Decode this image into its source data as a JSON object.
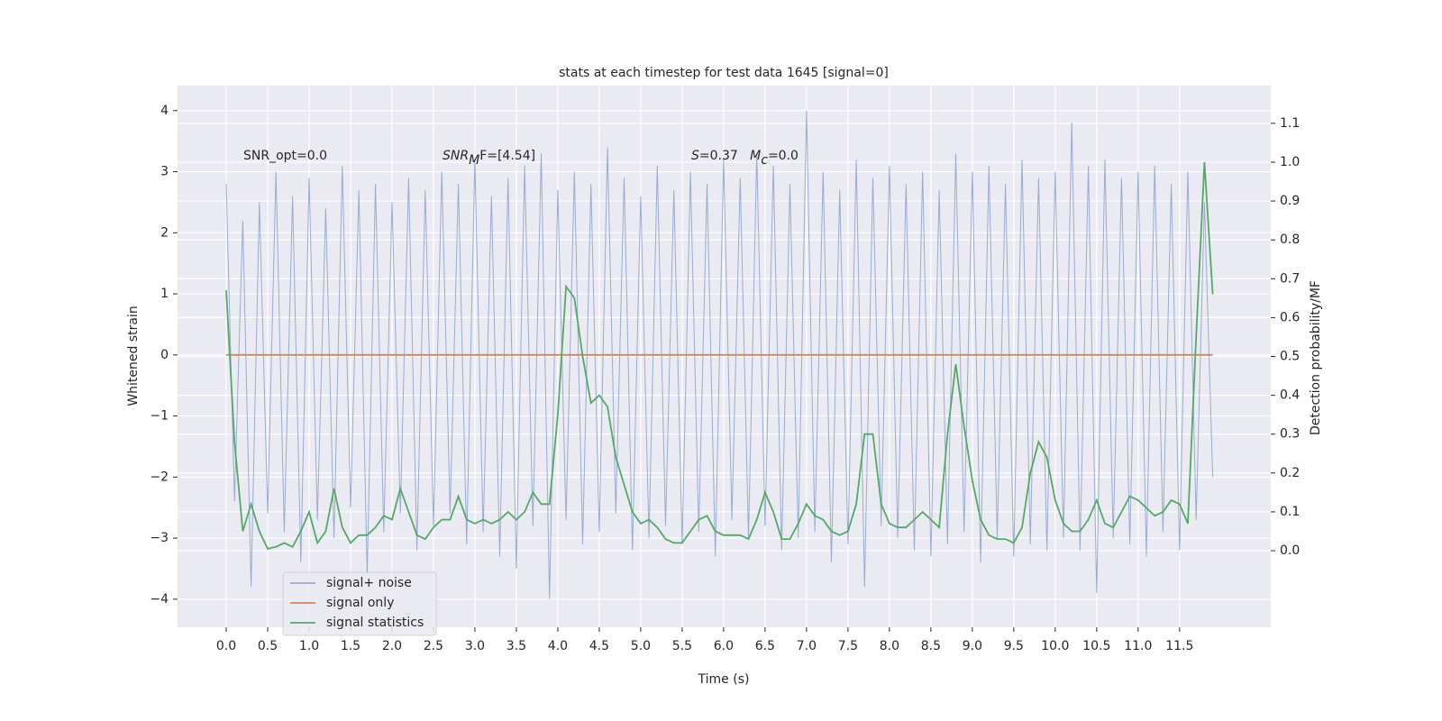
{
  "chart_data": {
    "type": "line",
    "title": "stats at each timestep for test data 1645 [signal=0]",
    "xlabel": "Time (s)",
    "ylabel": "Whitened strain",
    "y2label": "Detection probability/MF",
    "annotations": [
      [
        {
          "text": "SNR_opt=0.0"
        }
      ],
      [
        {
          "text": "SNR",
          "italic": true
        },
        {
          "text": "M",
          "italic": true,
          "sub": true
        },
        {
          "text": "F=[4.54]"
        }
      ],
      [
        {
          "text": "S",
          "italic": true
        },
        {
          "text": "=0.37   "
        },
        {
          "text": "M",
          "italic": true
        },
        {
          "text": "c",
          "italic": true,
          "sub": true
        },
        {
          "text": "=0.0"
        }
      ]
    ],
    "x": [
      0,
      0.1,
      0.2,
      0.3,
      0.4,
      0.5,
      0.6,
      0.7,
      0.8,
      0.9,
      1,
      1.1,
      1.2,
      1.3,
      1.4,
      1.5,
      1.6,
      1.7,
      1.8,
      1.9,
      2,
      2.1,
      2.2,
      2.3,
      2.4,
      2.5,
      2.6,
      2.7,
      2.8,
      2.9,
      3,
      3.1,
      3.2,
      3.3,
      3.4,
      3.5,
      3.6,
      3.7,
      3.8,
      3.9,
      4,
      4.1,
      4.2,
      4.3,
      4.4,
      4.5,
      4.6,
      4.7,
      4.8,
      4.9,
      5,
      5.1,
      5.2,
      5.3,
      5.4,
      5.5,
      5.6,
      5.7,
      5.8,
      5.9,
      6,
      6.1,
      6.2,
      6.3,
      6.4,
      6.5,
      6.6,
      6.7,
      6.8,
      6.9,
      7,
      7.1,
      7.2,
      7.3,
      7.4,
      7.5,
      7.6,
      7.7,
      7.8,
      7.9,
      8,
      8.1,
      8.2,
      8.3,
      8.4,
      8.5,
      8.6,
      8.7,
      8.8,
      8.9,
      9,
      9.1,
      9.2,
      9.3,
      9.4,
      9.5,
      9.6,
      9.7,
      9.8,
      9.9,
      10,
      10.1,
      10.2,
      10.3,
      10.4,
      10.5,
      10.6,
      10.7,
      10.8,
      10.9,
      11,
      11.1,
      11.2,
      11.3,
      11.4,
      11.5,
      11.6,
      11.7,
      11.8,
      11.9
    ],
    "series": [
      {
        "name": "signal+ noise",
        "color": "#9aabd0",
        "values": [
          2.8,
          -2.4,
          2.2,
          -3.8,
          2.5,
          -2.6,
          3.0,
          -2.9,
          2.6,
          -3.4,
          2.9,
          -2.7,
          2.4,
          -3.0,
          3.1,
          -2.5,
          2.7,
          -3.6,
          2.8,
          -2.9,
          2.5,
          -2.6,
          2.9,
          -3.2,
          2.7,
          -2.8,
          3.0,
          -2.6,
          2.8,
          -3.1,
          3.2,
          -2.9,
          2.6,
          -3.3,
          2.9,
          -3.5,
          3.1,
          -2.8,
          3.3,
          -4.0,
          2.7,
          -2.7,
          3.0,
          -3.1,
          2.8,
          -2.9,
          3.4,
          -2.6,
          2.9,
          -3.2,
          2.6,
          -3.0,
          3.1,
          -2.8,
          2.7,
          -3.1,
          3.0,
          -2.9,
          2.8,
          -3.3,
          3.2,
          -2.7,
          2.9,
          -3.0,
          3.3,
          -2.8,
          3.1,
          -3.2,
          2.8,
          -3.0,
          4.0,
          -2.9,
          3.0,
          -3.4,
          2.7,
          -3.1,
          3.2,
          -3.8,
          2.9,
          -2.8,
          3.1,
          -3.0,
          2.8,
          -3.2,
          3.0,
          -3.3,
          2.7,
          -3.1,
          3.3,
          -2.9,
          3.0,
          -3.4,
          3.1,
          -3.0,
          2.8,
          -3.3,
          3.2,
          -3.1,
          2.9,
          -3.2,
          3.0,
          -3.0,
          3.8,
          -3.2,
          3.1,
          -3.9,
          3.2,
          -3.0,
          2.9,
          -3.1,
          3.0,
          -3.3,
          3.1,
          -2.9,
          2.8,
          -3.2,
          3.0,
          -2.7,
          2.5,
          -2.0
        ]
      },
      {
        "name": "signal only",
        "color": "#dd8452",
        "values": [
          0,
          0,
          0,
          0,
          0,
          0,
          0,
          0,
          0,
          0,
          0,
          0,
          0,
          0,
          0,
          0,
          0,
          0,
          0,
          0,
          0,
          0,
          0,
          0,
          0,
          0,
          0,
          0,
          0,
          0,
          0,
          0,
          0,
          0,
          0,
          0,
          0,
          0,
          0,
          0,
          0,
          0,
          0,
          0,
          0,
          0,
          0,
          0,
          0,
          0,
          0,
          0,
          0,
          0,
          0,
          0,
          0,
          0,
          0,
          0,
          0,
          0,
          0,
          0,
          0,
          0,
          0,
          0,
          0,
          0,
          0,
          0,
          0,
          0,
          0,
          0,
          0,
          0,
          0,
          0,
          0,
          0,
          0,
          0,
          0,
          0,
          0,
          0,
          0,
          0,
          0,
          0,
          0,
          0,
          0,
          0,
          0,
          0,
          0,
          0,
          0,
          0,
          0,
          0,
          0,
          0,
          0,
          0,
          0,
          0,
          0,
          0,
          0,
          0,
          0,
          0,
          0,
          0,
          0,
          0
        ]
      },
      {
        "name": "signal statistics",
        "color": "#55a868",
        "axis": "y2",
        "values": [
          0.67,
          0.28,
          0.05,
          0.12,
          0.05,
          0.005,
          0.01,
          0.02,
          0.01,
          0.05,
          0.1,
          0.02,
          0.05,
          0.16,
          0.06,
          0.02,
          0.04,
          0.04,
          0.06,
          0.09,
          0.08,
          0.16,
          0.1,
          0.04,
          0.03,
          0.06,
          0.08,
          0.08,
          0.14,
          0.08,
          0.07,
          0.08,
          0.07,
          0.08,
          0.1,
          0.08,
          0.1,
          0.15,
          0.12,
          0.12,
          0.35,
          0.68,
          0.65,
          0.5,
          0.38,
          0.4,
          0.37,
          0.24,
          0.17,
          0.1,
          0.07,
          0.08,
          0.06,
          0.03,
          0.02,
          0.02,
          0.05,
          0.08,
          0.09,
          0.05,
          0.04,
          0.04,
          0.04,
          0.03,
          0.08,
          0.15,
          0.1,
          0.03,
          0.03,
          0.07,
          0.12,
          0.09,
          0.08,
          0.05,
          0.04,
          0.05,
          0.12,
          0.3,
          0.3,
          0.12,
          0.07,
          0.06,
          0.06,
          0.08,
          0.1,
          0.08,
          0.06,
          0.3,
          0.48,
          0.32,
          0.18,
          0.08,
          0.04,
          0.03,
          0.03,
          0.02,
          0.06,
          0.2,
          0.28,
          0.24,
          0.13,
          0.07,
          0.05,
          0.05,
          0.08,
          0.13,
          0.07,
          0.06,
          0.1,
          0.14,
          0.13,
          0.11,
          0.09,
          0.1,
          0.13,
          0.12,
          0.07,
          0.55,
          1.0,
          0.66
        ]
      }
    ],
    "xlim": [
      -0.587,
      12.6
    ],
    "xticks": [
      {
        "value": 0,
        "label": "0.0"
      },
      {
        "value": 0.5,
        "label": "0.5"
      },
      {
        "value": 1,
        "label": "1.0"
      },
      {
        "value": 1.5,
        "label": "1.5"
      },
      {
        "value": 2,
        "label": "2.0"
      },
      {
        "value": 2.5,
        "label": "2.5"
      },
      {
        "value": 3,
        "label": "3.0"
      },
      {
        "value": 3.5,
        "label": "3.5"
      },
      {
        "value": 4,
        "label": "4.0"
      },
      {
        "value": 4.5,
        "label": "4.5"
      },
      {
        "value": 5,
        "label": "5.0"
      },
      {
        "value": 5.5,
        "label": "5.5"
      },
      {
        "value": 6,
        "label": "6.0"
      },
      {
        "value": 6.5,
        "label": "6.5"
      },
      {
        "value": 7,
        "label": "7.0"
      },
      {
        "value": 7.5,
        "label": "7.5"
      },
      {
        "value": 8,
        "label": "8.0"
      },
      {
        "value": 8.5,
        "label": "8.5"
      },
      {
        "value": 9,
        "label": "9.0"
      },
      {
        "value": 9.5,
        "label": "9.5"
      },
      {
        "value": 10,
        "label": "10.0"
      },
      {
        "value": 10.5,
        "label": "10.5"
      },
      {
        "value": 11,
        "label": "11.0"
      },
      {
        "value": 11.5,
        "label": "11.5"
      }
    ],
    "ylim": [
      -4.46,
      4.41
    ],
    "yticks": [
      {
        "value": -4,
        "label": "−4"
      },
      {
        "value": -3,
        "label": "−3"
      },
      {
        "value": -2,
        "label": "−2"
      },
      {
        "value": -1,
        "label": "−1"
      },
      0,
      1,
      2,
      3,
      4
    ],
    "y2lim": [
      -0.197,
      1.197
    ],
    "y2ticks": [
      {
        "value": 0,
        "label": "0.0"
      },
      0.1,
      0.2,
      0.3,
      0.4,
      0.5,
      0.6,
      0.7,
      0.8,
      0.9,
      {
        "value": 1,
        "label": "1.0"
      },
      1.1
    ],
    "grid": true,
    "legend": "lower left"
  }
}
